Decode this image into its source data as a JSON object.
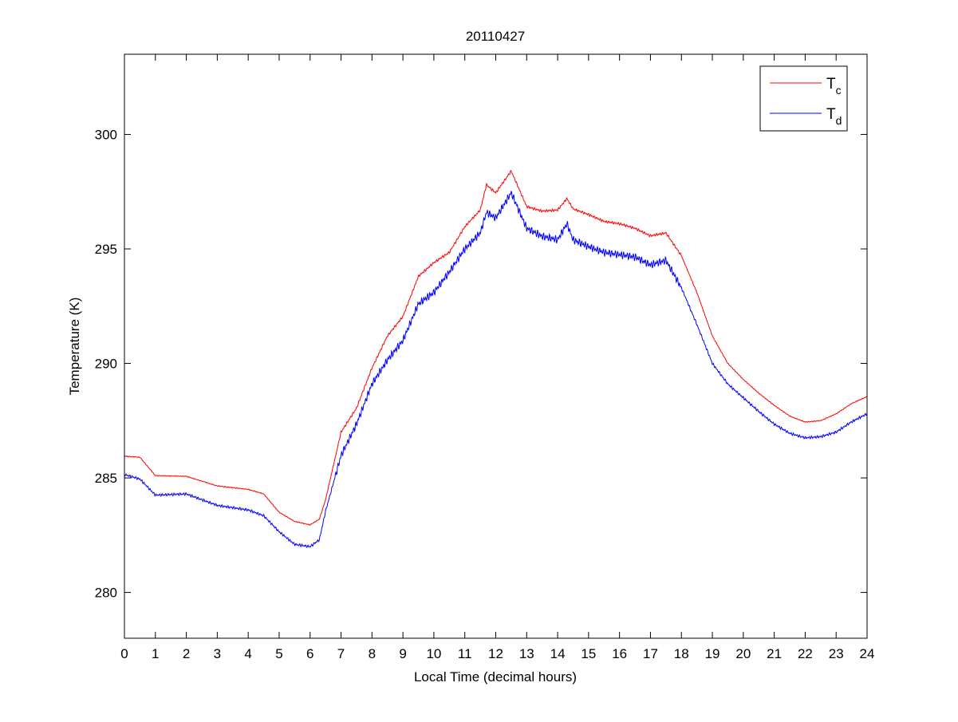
{
  "chart_data": {
    "type": "line",
    "title": "20110427",
    "xlabel": "Local Time (decimal hours)",
    "ylabel": "Temperature (K)",
    "xlim": [
      0,
      24
    ],
    "ylim": [
      278,
      303.5
    ],
    "xticks": [
      0,
      1,
      2,
      3,
      4,
      5,
      6,
      7,
      8,
      9,
      10,
      11,
      12,
      13,
      14,
      15,
      16,
      17,
      18,
      19,
      20,
      21,
      22,
      23,
      24
    ],
    "yticks": [
      280,
      285,
      290,
      295,
      300
    ],
    "grid": false,
    "legend_position": "top-right",
    "x": [
      0,
      0.5,
      1,
      2,
      3,
      4,
      4.5,
      5,
      5.5,
      6,
      6.3,
      6.5,
      7,
      7.5,
      8,
      8.5,
      9,
      9.5,
      10,
      10.5,
      11,
      11.5,
      11.7,
      12,
      12.5,
      13,
      13.5,
      14,
      14.3,
      14.5,
      15,
      15.5,
      16,
      16.5,
      17,
      17.5,
      18,
      18.5,
      19,
      19.5,
      20,
      20.5,
      21,
      21.5,
      22,
      22.5,
      23,
      23.5,
      24
    ],
    "series": [
      {
        "name": "T",
        "subscript": "c",
        "color": "#ff0000",
        "values": [
          285.95,
          285.9,
          285.1,
          285.07,
          284.65,
          284.5,
          284.3,
          283.5,
          283.1,
          282.95,
          283.2,
          284.05,
          287.0,
          288.05,
          289.8,
          291.2,
          292.05,
          293.8,
          294.4,
          294.85,
          295.97,
          296.7,
          297.8,
          297.45,
          298.4,
          296.85,
          296.65,
          296.7,
          297.2,
          296.75,
          296.5,
          296.2,
          296.1,
          295.9,
          295.57,
          295.7,
          294.7,
          293.1,
          291.2,
          290.0,
          289.3,
          288.7,
          288.17,
          287.7,
          287.44,
          287.5,
          287.8,
          288.25,
          288.55
        ]
      },
      {
        "name": "T",
        "subscript": "d",
        "color": "#0000ff",
        "values": [
          285.15,
          284.95,
          284.25,
          284.3,
          283.8,
          283.6,
          283.35,
          282.65,
          282.1,
          282.0,
          282.3,
          283.55,
          285.98,
          287.35,
          289.1,
          290.15,
          291.0,
          292.6,
          293.1,
          294.0,
          295.0,
          295.7,
          296.6,
          296.35,
          297.45,
          295.9,
          295.55,
          295.4,
          296.1,
          295.4,
          295.1,
          294.85,
          294.75,
          294.65,
          294.3,
          294.5,
          293.3,
          291.7,
          290.0,
          289.1,
          288.5,
          287.9,
          287.35,
          286.95,
          286.75,
          286.8,
          287.0,
          287.45,
          287.8
        ]
      }
    ]
  }
}
